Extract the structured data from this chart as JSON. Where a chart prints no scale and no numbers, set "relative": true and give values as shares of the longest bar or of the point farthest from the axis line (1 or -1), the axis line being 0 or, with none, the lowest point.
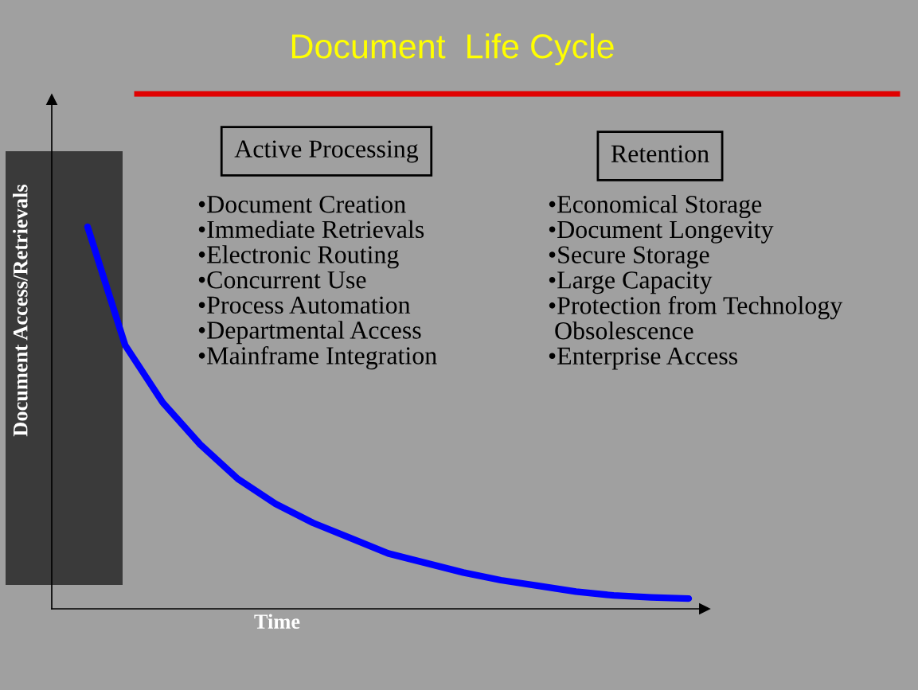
{
  "chart_data": {
    "type": "line",
    "title": "Document  Life Cycle",
    "xlabel": "Time",
    "ylabel": "Document Access/Retrievals",
    "relative": true,
    "grid": false,
    "legend": false,
    "marker": "none",
    "line_style": "solid",
    "categories": [
      null,
      null,
      null,
      null,
      null,
      null,
      null,
      null,
      null,
      null,
      null,
      null,
      null,
      null,
      null,
      null,
      null
    ],
    "series": [
      {
        "color": "#0000ff",
        "values": [
          1.0,
          0.69,
          0.54,
          0.43,
          0.34,
          0.275,
          0.225,
          0.185,
          0.145,
          0.12,
          0.095,
          0.075,
          0.06,
          0.045,
          0.035,
          0.03,
          0.027
        ]
      }
    ],
    "annotations": [
      "Active Processing",
      "•Document Creation\n•Immediate Retrievals\n•Electronic Routing\n•Concurrent Use\n•Process Automation\n•Departmental Access\n•Mainframe Integration",
      "Retention",
      "•Economical Storage\n•Document Longevity\n•Secure Storage\n•Large Capacity\n•Protection from Technology\n Obsolescence\n•Enterprise Access"
    ]
  }
}
